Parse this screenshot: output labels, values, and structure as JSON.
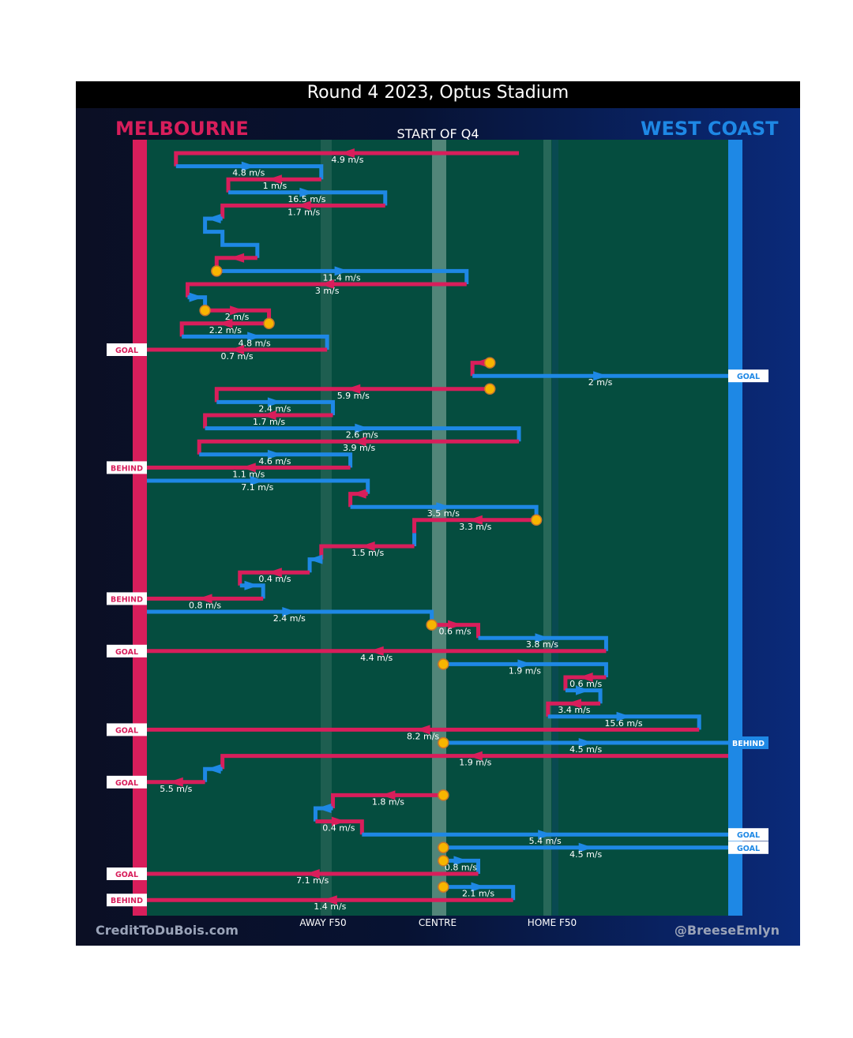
{
  "title": "Round 4 2023, Optus Stadium",
  "team_left": "MELBOURNE",
  "team_right": "WEST COAST",
  "quarter": "START OF Q4",
  "credit_left": "CreditToDuBois.com",
  "credit_right": "@BreeseEmlyn",
  "axis": {
    "away": "AWAY F50",
    "centre": "CENTRE",
    "home": "HOME F50"
  },
  "colors": {
    "melbourne": "#d81e5b",
    "west_coast": "#1e88e5",
    "field": "#054d3f",
    "ball_up": "#f7b500"
  },
  "chart_data": {
    "type": "chain",
    "title": "Round 4 2023, Optus Stadium",
    "subtitle": "START OF Q4",
    "xlabel_ticks": [
      "AWAY F50",
      "CENTRE",
      "HOME F50"
    ],
    "x_range": [
      0,
      100
    ],
    "segments": [
      {
        "team": "MEL",
        "path": [
          [
            64,
            0
          ],
          [
            5,
            0
          ],
          [
            5,
            1
          ]
        ],
        "speed": "4.9 m/s"
      },
      {
        "team": "WCE",
        "path": [
          [
            5,
            1
          ],
          [
            30,
            1
          ],
          [
            30,
            2
          ]
        ],
        "speed": "4.8 m/s"
      },
      {
        "team": "MEL",
        "path": [
          [
            30,
            2
          ],
          [
            14,
            2
          ],
          [
            14,
            3
          ]
        ],
        "speed": "1 m/s"
      },
      {
        "team": "WCE",
        "path": [
          [
            14,
            3
          ],
          [
            41,
            3
          ],
          [
            41,
            4
          ]
        ],
        "speed": "16.5 m/s"
      },
      {
        "team": "MEL",
        "path": [
          [
            41,
            4
          ],
          [
            13,
            4
          ],
          [
            13,
            5
          ]
        ],
        "speed": "1.7 m/s"
      },
      {
        "team": "WCE",
        "path": [
          [
            13,
            5
          ],
          [
            10,
            5
          ],
          [
            10,
            6
          ],
          [
            13,
            6
          ],
          [
            13,
            7
          ],
          [
            19,
            7
          ],
          [
            19,
            8
          ]
        ]
      },
      {
        "team": "MEL",
        "path": [
          [
            19,
            8
          ],
          [
            12,
            8
          ],
          [
            12,
            9
          ]
        ]
      },
      {
        "team": "WCE",
        "path": [
          [
            12,
            9
          ],
          [
            55,
            9
          ],
          [
            55,
            10
          ]
        ],
        "speed": "11.4 m/s",
        "ball_up": true
      },
      {
        "team": "MEL",
        "path": [
          [
            55,
            10
          ],
          [
            7,
            10
          ],
          [
            7,
            11
          ]
        ],
        "speed": "3 m/s"
      },
      {
        "team": "WCE",
        "path": [
          [
            7,
            11
          ],
          [
            10,
            11
          ],
          [
            10,
            12
          ]
        ]
      },
      {
        "team": "MEL",
        "path": [
          [
            10,
            12
          ],
          [
            21,
            12
          ],
          [
            21,
            13
          ]
        ],
        "speed": "2 m/s",
        "ball_up": true
      },
      {
        "team": "MEL",
        "path": [
          [
            21,
            13
          ],
          [
            6,
            13
          ],
          [
            6,
            14
          ]
        ],
        "speed": "2.2 m/s",
        "ball_up": true
      },
      {
        "team": "WCE",
        "path": [
          [
            6,
            14
          ],
          [
            31,
            14
          ],
          [
            31,
            15
          ]
        ],
        "speed": "4.8 m/s"
      },
      {
        "team": "MEL",
        "path": [
          [
            31,
            15
          ],
          [
            0,
            15
          ]
        ],
        "speed": "0.7 m/s",
        "result": "GOAL"
      },
      {
        "team": "MEL",
        "path": [
          [
            59,
            16
          ],
          [
            56,
            16
          ],
          [
            56,
            17
          ]
        ],
        "ball_up": true
      },
      {
        "team": "WCE",
        "path": [
          [
            56,
            17
          ],
          [
            100,
            17
          ]
        ],
        "speed": "2 m/s",
        "result": "GOAL"
      },
      {
        "team": "MEL",
        "path": [
          [
            59,
            18
          ],
          [
            12,
            18
          ],
          [
            12,
            19
          ]
        ],
        "speed": "5.9 m/s",
        "ball_up": true
      },
      {
        "team": "WCE",
        "path": [
          [
            12,
            19
          ],
          [
            32,
            19
          ],
          [
            32,
            20
          ]
        ],
        "speed": "2.4 m/s"
      },
      {
        "team": "MEL",
        "path": [
          [
            32,
            20
          ],
          [
            10,
            20
          ],
          [
            10,
            21
          ]
        ],
        "speed": "1.7 m/s"
      },
      {
        "team": "WCE",
        "path": [
          [
            10,
            21
          ],
          [
            64,
            21
          ],
          [
            64,
            22
          ]
        ],
        "speed": "2.6 m/s"
      },
      {
        "team": "MEL",
        "path": [
          [
            64,
            22
          ],
          [
            9,
            22
          ],
          [
            9,
            23
          ]
        ],
        "speed": "3.9 m/s"
      },
      {
        "team": "WCE",
        "path": [
          [
            9,
            23
          ],
          [
            35,
            23
          ],
          [
            35,
            24
          ]
        ],
        "speed": "4.6 m/s"
      },
      {
        "team": "MEL",
        "path": [
          [
            35,
            24
          ],
          [
            0,
            24
          ]
        ],
        "speed": "1.1 m/s",
        "result": "BEHIND"
      },
      {
        "team": "WCE",
        "path": [
          [
            0,
            25
          ],
          [
            38,
            25
          ],
          [
            38,
            26
          ]
        ],
        "speed": "7.1 m/s"
      },
      {
        "team": "MEL",
        "path": [
          [
            38,
            26
          ],
          [
            35,
            26
          ],
          [
            35,
            27
          ]
        ]
      },
      {
        "team": "WCE",
        "path": [
          [
            35,
            27
          ],
          [
            67,
            27
          ],
          [
            67,
            28
          ]
        ],
        "speed": "3.5 m/s"
      },
      {
        "team": "MEL",
        "path": [
          [
            67,
            28
          ],
          [
            46,
            28
          ],
          [
            46,
            29
          ]
        ],
        "speed": "3.3 m/s",
        "ball_up": true
      },
      {
        "team": "WCE",
        "path": [
          [
            46,
            29
          ],
          [
            46,
            30
          ]
        ]
      },
      {
        "team": "MEL",
        "path": [
          [
            46,
            30
          ],
          [
            30,
            30
          ],
          [
            30,
            31
          ]
        ],
        "speed": "1.5 m/s"
      },
      {
        "team": "WCE",
        "path": [
          [
            30,
            31
          ],
          [
            28,
            31
          ],
          [
            28,
            32
          ]
        ]
      },
      {
        "team": "MEL",
        "path": [
          [
            28,
            32
          ],
          [
            16,
            32
          ],
          [
            16,
            33
          ]
        ],
        "speed": "0.4 m/s"
      },
      {
        "team": "WCE",
        "path": [
          [
            16,
            33
          ],
          [
            20,
            33
          ],
          [
            20,
            34
          ]
        ]
      },
      {
        "team": "MEL",
        "path": [
          [
            20,
            34
          ],
          [
            0,
            34
          ]
        ],
        "speed": "0.8 m/s",
        "result": "BEHIND"
      },
      {
        "team": "WCE",
        "path": [
          [
            0,
            35
          ],
          [
            49,
            35
          ],
          [
            49,
            36
          ]
        ],
        "speed": "2.4 m/s"
      },
      {
        "team": "MEL",
        "path": [
          [
            49,
            36
          ],
          [
            57,
            36
          ],
          [
            57,
            37
          ]
        ],
        "speed": "0.6 m/s",
        "ball_up": true
      },
      {
        "team": "WCE",
        "path": [
          [
            57,
            37
          ],
          [
            79,
            37
          ],
          [
            79,
            38
          ]
        ],
        "speed": "3.8 m/s"
      },
      {
        "team": "MEL",
        "path": [
          [
            79,
            38
          ],
          [
            0,
            38
          ]
        ],
        "speed": "4.4 m/s",
        "result": "GOAL"
      },
      {
        "team": "WCE",
        "path": [
          [
            51,
            39
          ],
          [
            79,
            39
          ],
          [
            79,
            40
          ]
        ],
        "speed": "1.9 m/s",
        "ball_up": true
      },
      {
        "team": "MEL",
        "path": [
          [
            79,
            40
          ],
          [
            72,
            40
          ],
          [
            72,
            41
          ]
        ],
        "speed": "0.6 m/s"
      },
      {
        "team": "WCE",
        "path": [
          [
            72,
            41
          ],
          [
            78,
            41
          ],
          [
            78,
            42
          ]
        ]
      },
      {
        "team": "MEL",
        "path": [
          [
            78,
            42
          ],
          [
            69,
            42
          ],
          [
            69,
            43
          ]
        ],
        "speed": "3.4 m/s"
      },
      {
        "team": "WCE",
        "path": [
          [
            69,
            43
          ],
          [
            95,
            43
          ],
          [
            95,
            44
          ]
        ],
        "speed": "15.6 m/s"
      },
      {
        "team": "MEL",
        "path": [
          [
            95,
            44
          ],
          [
            0,
            44
          ]
        ],
        "speed": "8.2 m/s",
        "result": "GOAL"
      },
      {
        "team": "WCE",
        "path": [
          [
            51,
            45
          ],
          [
            100,
            45
          ]
        ],
        "speed": "4.5 m/s",
        "ball_up": true,
        "result": "BEHIND"
      },
      {
        "team": "MEL",
        "path": [
          [
            100,
            46
          ],
          [
            13,
            46
          ],
          [
            13,
            47
          ]
        ],
        "speed": "1.9 m/s"
      },
      {
        "team": "WCE",
        "path": [
          [
            13,
            47
          ],
          [
            10,
            47
          ],
          [
            10,
            48
          ]
        ]
      },
      {
        "team": "MEL",
        "path": [
          [
            10,
            48
          ],
          [
            0,
            48
          ]
        ],
        "speed": "5.5 m/s",
        "result": "GOAL"
      },
      {
        "team": "MEL",
        "path": [
          [
            51,
            49
          ],
          [
            32,
            49
          ],
          [
            32,
            50
          ]
        ],
        "speed": "1.8 m/s",
        "ball_up": true
      },
      {
        "team": "WCE",
        "path": [
          [
            32,
            50
          ],
          [
            29,
            50
          ],
          [
            29,
            51
          ]
        ]
      },
      {
        "team": "MEL",
        "path": [
          [
            29,
            51
          ],
          [
            37,
            51
          ],
          [
            37,
            52
          ]
        ],
        "speed": "0.4 m/s"
      },
      {
        "team": "WCE",
        "path": [
          [
            37,
            52
          ],
          [
            100,
            52
          ]
        ],
        "speed": "5.4 m/s",
        "result": "GOAL"
      },
      {
        "team": "WCE",
        "path": [
          [
            51,
            53
          ],
          [
            100,
            53
          ]
        ],
        "speed": "4.5 m/s",
        "ball_up": true,
        "result": "GOAL"
      },
      {
        "team": "WCE",
        "path": [
          [
            51,
            54
          ],
          [
            57,
            54
          ],
          [
            57,
            55
          ]
        ],
        "speed": "0.8 m/s",
        "ball_up": true
      },
      {
        "team": "MEL",
        "path": [
          [
            57,
            55
          ],
          [
            0,
            55
          ]
        ],
        "speed": "7.1 m/s",
        "result": "GOAL"
      },
      {
        "team": "WCE",
        "path": [
          [
            51,
            56
          ],
          [
            63,
            56
          ],
          [
            63,
            57
          ]
        ],
        "speed": "2.1 m/s",
        "ball_up": true
      },
      {
        "team": "MEL",
        "path": [
          [
            63,
            57
          ],
          [
            0,
            57
          ]
        ],
        "speed": "1.4 m/s",
        "result": "BEHIND"
      }
    ]
  }
}
